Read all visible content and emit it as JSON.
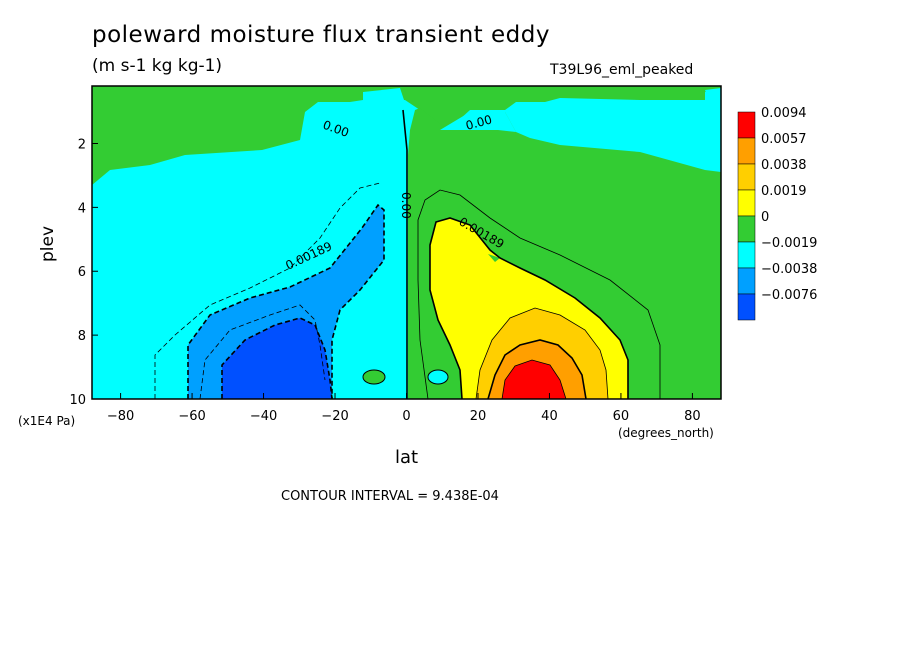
{
  "title": "poleward moisture flux transient eddy",
  "units": "(m s-1 kg kg-1)",
  "run_name": "T39L96_eml_peaked",
  "contour_interval": "CONTOUR INTERVAL = 9.438E-04",
  "chart_data": {
    "type": "heatmap",
    "title": "poleward moisture flux transient eddy",
    "subtitle": "(m s-1 kg kg-1)",
    "xlabel": "lat",
    "ylabel": "plev",
    "x_unit": "(degrees_north)",
    "y_unit": "(x1E4 Pa)",
    "xlim": [
      -88,
      88
    ],
    "ylim": [
      10,
      0.2
    ],
    "x_ticks": [
      -80,
      -60,
      -40,
      -20,
      0,
      20,
      40,
      60,
      80
    ],
    "x_tick_labels": [
      "−80",
      "−60",
      "−40",
      "−20",
      "0",
      "20",
      "40",
      "60",
      "80"
    ],
    "y_ticks": [
      2,
      4,
      6,
      8,
      10
    ],
    "y_tick_labels": [
      "2",
      "4",
      "6",
      "8",
      "10"
    ],
    "legend": {
      "placement": "right",
      "labels": [
        "0.0094",
        "0.0057",
        "0.0038",
        "0.0019",
        "0",
        "−0.0019",
        "−0.0038",
        "−0.0076"
      ],
      "colors": [
        "#ff0000",
        "#ff9f00",
        "#ffcf00",
        "#ffff00",
        "#33cc33",
        "#00ffff",
        "#00a0ff",
        "#0050ff"
      ]
    },
    "contour_labels": [
      {
        "text": "0.00",
        "lat": -20,
        "plev": 1.4
      },
      {
        "text": "0.00",
        "lat": 22,
        "plev": 1.3
      },
      {
        "text": "0.00",
        "lat": 0,
        "plev": 4.0
      },
      {
        "text": "0.00189",
        "lat": -26,
        "plev": 5.5
      },
      {
        "text": "0.00189",
        "lat": 22,
        "plev": 5.0
      }
    ],
    "regions": [
      {
        "level": "0",
        "color": "#33cc33"
      },
      {
        "level": "−0.0019",
        "color": "#00ffff"
      },
      {
        "level": "−0.0038",
        "color": "#00a0ff"
      },
      {
        "level": "−0.0076",
        "color": "#0050ff"
      },
      {
        "level": "0.0019",
        "color": "#ffff00"
      },
      {
        "level": "0.0038",
        "color": "#ffcf00"
      },
      {
        "level": "0.0057",
        "color": "#ff9f00"
      },
      {
        "level": "0.0094",
        "color": "#ff0000"
      }
    ],
    "grid": false
  }
}
